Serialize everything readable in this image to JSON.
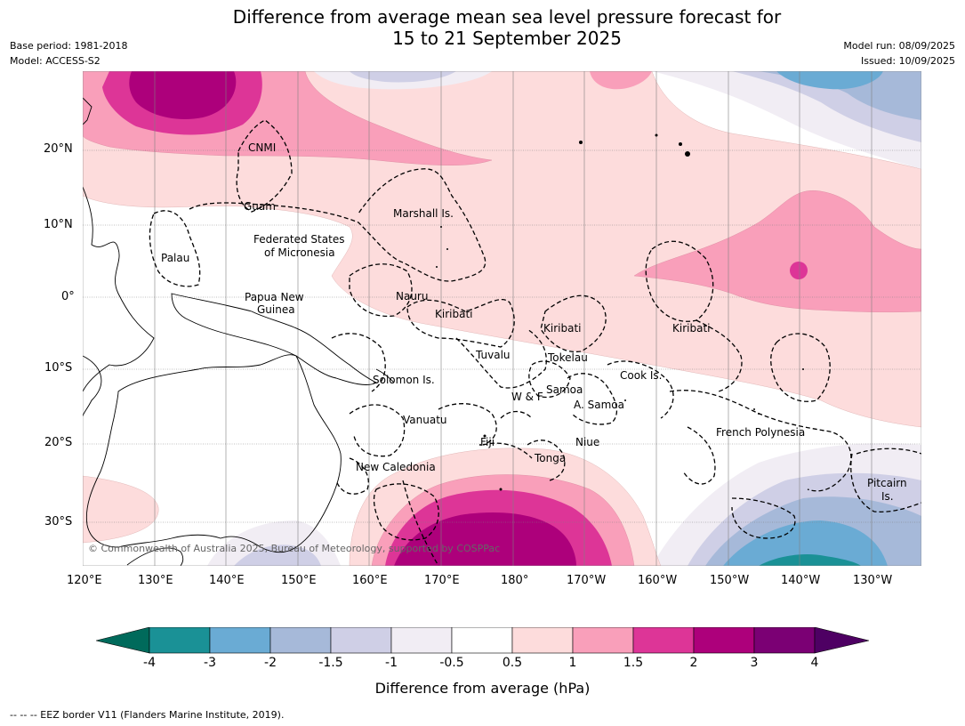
{
  "title_line1": "Difference from average mean sea level pressure forecast for",
  "title_line2": "15 to 21 September 2025",
  "base_period": "Base period: 1981-2018",
  "model": "Model: ACCESS-S2",
  "model_run": "Model run: 08/09/2025",
  "issued": "Issued: 10/09/2025",
  "copyright": "© Commonwealth of Australia 2025, Bureau of Meteorology, supported by COSPPac",
  "lon_ticks": [
    "120°E",
    "130°E",
    "140°E",
    "150°E",
    "160°E",
    "170°E",
    "180°",
    "170°W",
    "160°W",
    "150°W",
    "140°W",
    "130°W"
  ],
  "lat_ticks": [
    "20°N",
    "10°N",
    "0°",
    "10°S",
    "20°S",
    "30°S"
  ],
  "regions": [
    {
      "name": "CNMI"
    },
    {
      "name": "Guam"
    },
    {
      "name": "Marshall Is."
    },
    {
      "name": "Federated States"
    },
    {
      "name": "of Micronesia"
    },
    {
      "name": "Palau"
    },
    {
      "name": "Papua New"
    },
    {
      "name": "Guinea"
    },
    {
      "name": "Nauru"
    },
    {
      "name": "Kiribati"
    },
    {
      "name": "Kiribati"
    },
    {
      "name": "Kiribati"
    },
    {
      "name": "Tuvalu"
    },
    {
      "name": "Tokelau"
    },
    {
      "name": "Cook Is."
    },
    {
      "name": "Solomon Is."
    },
    {
      "name": "Samoa"
    },
    {
      "name": "W & F"
    },
    {
      "name": "A. Samoa"
    },
    {
      "name": "Vanuatu"
    },
    {
      "name": "Fiji"
    },
    {
      "name": "Niue"
    },
    {
      "name": "Tonga"
    },
    {
      "name": "French Polynesia"
    },
    {
      "name": "New Caledonia"
    },
    {
      "name": "Pitcairn"
    },
    {
      "name": "Is."
    }
  ],
  "colorbar": {
    "label": "Difference from average (hPa)",
    "ticks": [
      "-4",
      "-3",
      "-2",
      "-1.5",
      "-1",
      "-0.5",
      "0.5",
      "1",
      "1.5",
      "2",
      "3",
      "4"
    ],
    "colors": [
      "#1a9196",
      "#6aabd4",
      "#a6b9d9",
      "#cfcfe6",
      "#f1edf4",
      "#ffffff",
      "#fddcdc",
      "#f99fba",
      "#dd3597",
      "#ad007b",
      "#7b0074"
    ],
    "under_color": "#006a5b",
    "over_color": "#4e0063"
  },
  "footnote": "--  --  -- EEZ border V11 (Flanders Marine Institute, 2019)."
}
